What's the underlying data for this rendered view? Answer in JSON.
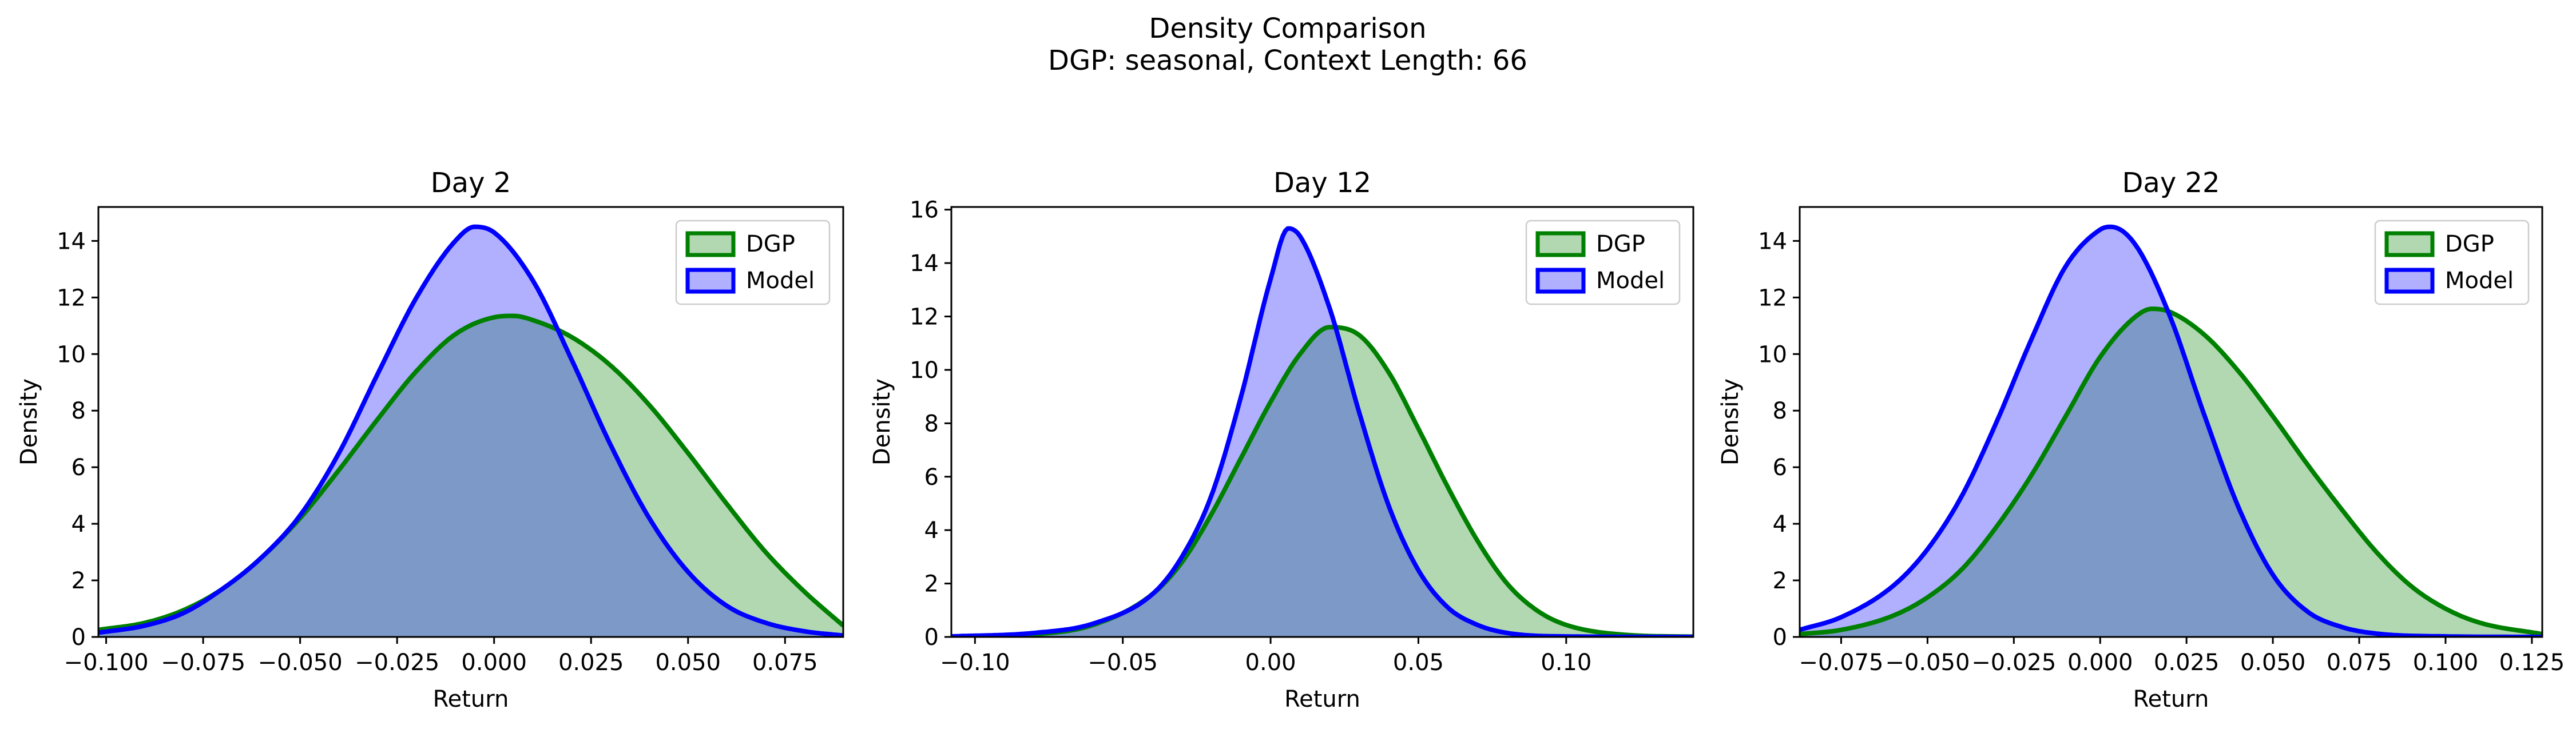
{
  "figure": {
    "title_line1": "Density Comparison",
    "title_line2": "DGP: seasonal, Context Length: 66"
  },
  "colors": {
    "dgp_line": "#008000",
    "dgp_fill": "#b2d8b2",
    "model_line": "#0000ff",
    "model_fill": "#b0b0ff",
    "overlap_fill": "#7d99c8"
  },
  "chart_data": [
    {
      "type": "area",
      "title": "Day 2",
      "xlabel": "Return",
      "ylabel": "Density",
      "xlim": [
        -0.102,
        0.09
      ],
      "ylim": [
        0,
        15.2
      ],
      "xticks": [
        -0.1,
        -0.075,
        -0.05,
        -0.025,
        0.0,
        0.025,
        0.05,
        0.075
      ],
      "xtick_labels": [
        "−0.100",
        "−0.075",
        "−0.050",
        "−0.025",
        "0.000",
        "0.025",
        "0.050",
        "0.075"
      ],
      "yticks": [
        0,
        2,
        4,
        6,
        8,
        10,
        12,
        14
      ],
      "ytick_labels": [
        "0",
        "2",
        "4",
        "6",
        "8",
        "10",
        "12",
        "14"
      ],
      "legend_position": "upper right",
      "series": [
        {
          "name": "DGP",
          "x": [
            -0.102,
            -0.09,
            -0.08,
            -0.07,
            -0.06,
            -0.05,
            -0.04,
            -0.03,
            -0.02,
            -0.01,
            0.0,
            0.005,
            0.01,
            0.02,
            0.03,
            0.04,
            0.05,
            0.06,
            0.07,
            0.08,
            0.09
          ],
          "y": [
            0.25,
            0.5,
            0.95,
            1.7,
            2.8,
            4.2,
            5.9,
            7.7,
            9.4,
            10.7,
            11.3,
            11.35,
            11.2,
            10.6,
            9.6,
            8.2,
            6.5,
            4.7,
            3.0,
            1.6,
            0.4
          ]
        },
        {
          "name": "Model",
          "x": [
            -0.102,
            -0.09,
            -0.08,
            -0.07,
            -0.06,
            -0.05,
            -0.04,
            -0.03,
            -0.02,
            -0.01,
            -0.005,
            0.0,
            0.01,
            0.02,
            0.03,
            0.04,
            0.05,
            0.06,
            0.07,
            0.08,
            0.09
          ],
          "y": [
            0.15,
            0.4,
            0.85,
            1.7,
            2.8,
            4.3,
            6.5,
            9.3,
            12.0,
            14.0,
            14.5,
            14.3,
            12.6,
            9.8,
            6.8,
            4.2,
            2.3,
            1.1,
            0.5,
            0.2,
            0.05
          ]
        }
      ]
    },
    {
      "type": "area",
      "title": "Day 12",
      "xlabel": "Return",
      "ylabel": "Density",
      "xlim": [
        -0.108,
        0.143
      ],
      "ylim": [
        0,
        16.1
      ],
      "xticks": [
        -0.1,
        -0.05,
        0.0,
        0.05,
        0.1
      ],
      "xtick_labels": [
        "−0.10",
        "−0.05",
        "0.00",
        "0.05",
        "0.10"
      ],
      "yticks": [
        0,
        2,
        4,
        6,
        8,
        10,
        12,
        14,
        16
      ],
      "ytick_labels": [
        "0",
        "2",
        "4",
        "6",
        "8",
        "10",
        "12",
        "14",
        "16"
      ],
      "legend_position": "upper right",
      "series": [
        {
          "name": "DGP",
          "x": [
            -0.108,
            -0.08,
            -0.06,
            -0.04,
            -0.03,
            -0.02,
            -0.01,
            0.0,
            0.01,
            0.02,
            0.03,
            0.04,
            0.05,
            0.06,
            0.07,
            0.08,
            0.09,
            0.1,
            0.12,
            0.143
          ],
          "y": [
            0.01,
            0.1,
            0.45,
            1.6,
            2.8,
            4.6,
            6.7,
            8.8,
            10.6,
            11.6,
            11.3,
            9.9,
            7.8,
            5.6,
            3.6,
            2.0,
            1.0,
            0.45,
            0.08,
            0.01
          ]
        },
        {
          "name": "Model",
          "x": [
            -0.108,
            -0.08,
            -0.06,
            -0.04,
            -0.03,
            -0.02,
            -0.01,
            0.0,
            0.006,
            0.01,
            0.02,
            0.03,
            0.04,
            0.05,
            0.06,
            0.07,
            0.08,
            0.1,
            0.143
          ],
          "y": [
            0.02,
            0.15,
            0.5,
            1.6,
            3.0,
            5.3,
            9.0,
            13.4,
            15.3,
            15.0,
            12.3,
            8.4,
            4.9,
            2.5,
            1.1,
            0.45,
            0.15,
            0.02,
            0.0
          ]
        }
      ]
    },
    {
      "type": "area",
      "title": "Day 22",
      "xlabel": "Return",
      "ylabel": "Density",
      "xlim": [
        -0.087,
        0.128
      ],
      "ylim": [
        0,
        15.2
      ],
      "xticks": [
        -0.075,
        -0.05,
        -0.025,
        0.0,
        0.025,
        0.05,
        0.075,
        0.1,
        0.125
      ],
      "xtick_labels": [
        "−0.075",
        "−0.050",
        "−0.025",
        "0.000",
        "0.025",
        "0.050",
        "0.075",
        "0.100",
        "0.125"
      ],
      "yticks": [
        0,
        2,
        4,
        6,
        8,
        10,
        12,
        14
      ],
      "ytick_labels": [
        "0",
        "2",
        "4",
        "6",
        "8",
        "10",
        "12",
        "14"
      ],
      "legend_position": "upper right",
      "series": [
        {
          "name": "DGP",
          "x": [
            -0.087,
            -0.075,
            -0.06,
            -0.05,
            -0.04,
            -0.03,
            -0.02,
            -0.01,
            0.0,
            0.01,
            0.015,
            0.02,
            0.03,
            0.04,
            0.05,
            0.06,
            0.07,
            0.08,
            0.09,
            0.1,
            0.11,
            0.128
          ],
          "y": [
            0.1,
            0.25,
            0.75,
            1.4,
            2.4,
            3.9,
            5.7,
            7.8,
            9.9,
            11.3,
            11.6,
            11.5,
            10.7,
            9.4,
            7.8,
            6.1,
            4.5,
            3.0,
            1.8,
            1.0,
            0.5,
            0.1
          ]
        },
        {
          "name": "Model",
          "x": [
            -0.087,
            -0.075,
            -0.06,
            -0.05,
            -0.04,
            -0.03,
            -0.02,
            -0.01,
            0.0,
            0.003,
            0.01,
            0.02,
            0.03,
            0.04,
            0.05,
            0.06,
            0.07,
            0.08,
            0.1,
            0.128
          ],
          "y": [
            0.25,
            0.7,
            1.8,
            3.1,
            5.0,
            7.6,
            10.5,
            13.1,
            14.4,
            14.5,
            13.9,
            11.4,
            7.9,
            4.6,
            2.2,
            0.9,
            0.35,
            0.12,
            0.02,
            0.0
          ]
        }
      ]
    }
  ]
}
